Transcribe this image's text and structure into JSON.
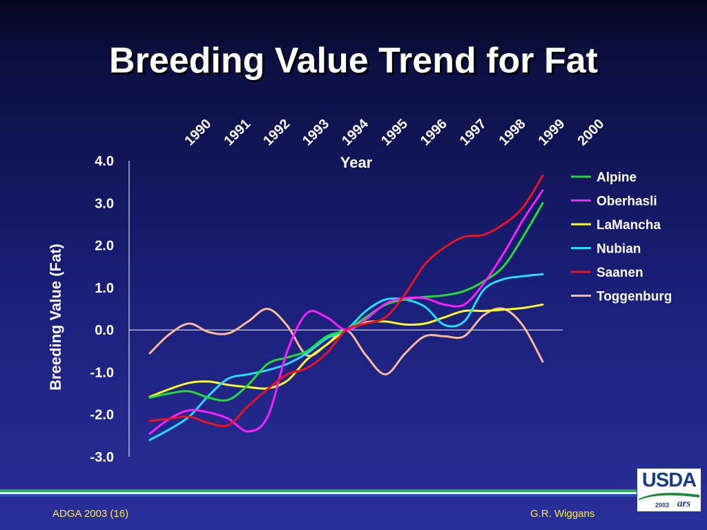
{
  "slide": {
    "title": "Breeding Value Trend for Fat",
    "footer_left": "ADGA 2003 (16)",
    "footer_right": "G.R. Wiggans"
  },
  "logo": {
    "agency": "USDA",
    "year": "2003",
    "unit": "ars"
  },
  "colors": {
    "background_top": "#05061e",
    "background_bottom": "#2a309a",
    "footer_text": "#ffe74a",
    "stripe_green": "#22b14c",
    "stripe_blue": "#2a4fb8"
  },
  "chart_data": {
    "type": "line",
    "title": "",
    "xlabel": "Year",
    "ylabel": "Breeding Value (Fat)",
    "x_position": "top",
    "x": [
      1989.5,
      1990,
      1990.5,
      1991,
      1991.5,
      1992,
      1992.5,
      1993,
      1993.5,
      1994,
      1994.5,
      1995,
      1995.5,
      1996,
      1996.5,
      1997,
      1997.5,
      1998,
      1998.5,
      1999,
      1999.5
    ],
    "x_tick_labels": [
      "1990",
      "1991",
      "1992",
      "1993",
      "1994",
      "1995",
      "1996",
      "1997",
      "1998",
      "1999",
      "2000"
    ],
    "x_tick_values": [
      1990,
      1991,
      1992,
      1993,
      1994,
      1995,
      1996,
      1997,
      1998,
      1999,
      2000
    ],
    "y_ticks": [
      4.0,
      3.0,
      2.0,
      1.0,
      0.0,
      -1.0,
      -2.0,
      -3.0
    ],
    "y_tick_labels": [
      "4.0",
      "3.0",
      "2.0",
      "1.0",
      "0.0",
      "-1.0",
      "-2.0",
      "-3.0"
    ],
    "ylim": [
      -3.0,
      4.0
    ],
    "xlim": [
      1989.5,
      2000.5
    ],
    "zero_line": true,
    "grid": false,
    "legend_position": "right",
    "series": [
      {
        "name": "Alpine",
        "color": "#22dd33",
        "values": [
          -1.6,
          -1.5,
          -1.45,
          -1.6,
          -1.65,
          -1.3,
          -0.8,
          -0.65,
          -0.5,
          -0.15,
          0.0,
          0.3,
          0.6,
          0.72,
          0.78,
          0.82,
          0.92,
          1.15,
          1.5,
          2.2,
          3.0
        ]
      },
      {
        "name": "Oberhasli",
        "color": "#ff22ff",
        "values": [
          -2.45,
          -2.1,
          -1.9,
          -1.95,
          -2.1,
          -2.4,
          -2.05,
          -0.5,
          0.4,
          0.3,
          0.0,
          0.25,
          0.62,
          0.75,
          0.75,
          0.6,
          0.6,
          1.1,
          1.8,
          2.6,
          3.3
        ]
      },
      {
        "name": "LaMancha",
        "color": "#ffff22",
        "values": [
          -1.58,
          -1.4,
          -1.25,
          -1.22,
          -1.3,
          -1.35,
          -1.38,
          -1.2,
          -0.7,
          -0.35,
          0.0,
          0.18,
          0.2,
          0.13,
          0.15,
          0.3,
          0.45,
          0.45,
          0.48,
          0.52,
          0.6
        ]
      },
      {
        "name": "Nubian",
        "color": "#22ddff",
        "values": [
          -2.6,
          -2.35,
          -2.05,
          -1.55,
          -1.15,
          -1.05,
          -0.95,
          -0.8,
          -0.55,
          -0.2,
          0.0,
          0.45,
          0.72,
          0.72,
          0.55,
          0.12,
          0.2,
          0.95,
          1.2,
          1.27,
          1.32
        ]
      },
      {
        "name": "Saanen",
        "color": "#ee1122",
        "values": [
          -2.15,
          -2.1,
          -2.05,
          -2.2,
          -2.25,
          -1.8,
          -1.4,
          -1.05,
          -0.9,
          -0.55,
          0.0,
          0.15,
          0.3,
          0.85,
          1.55,
          1.95,
          2.2,
          2.25,
          2.5,
          2.9,
          3.65
        ]
      },
      {
        "name": "Toggenburg",
        "color": "#ffbb99",
        "values": [
          -0.55,
          -0.1,
          0.15,
          -0.05,
          -0.08,
          0.2,
          0.5,
          0.1,
          -0.6,
          -0.35,
          0.0,
          -0.6,
          -1.05,
          -0.55,
          -0.15,
          -0.15,
          -0.15,
          0.35,
          0.5,
          0.1,
          -0.75
        ]
      }
    ]
  }
}
